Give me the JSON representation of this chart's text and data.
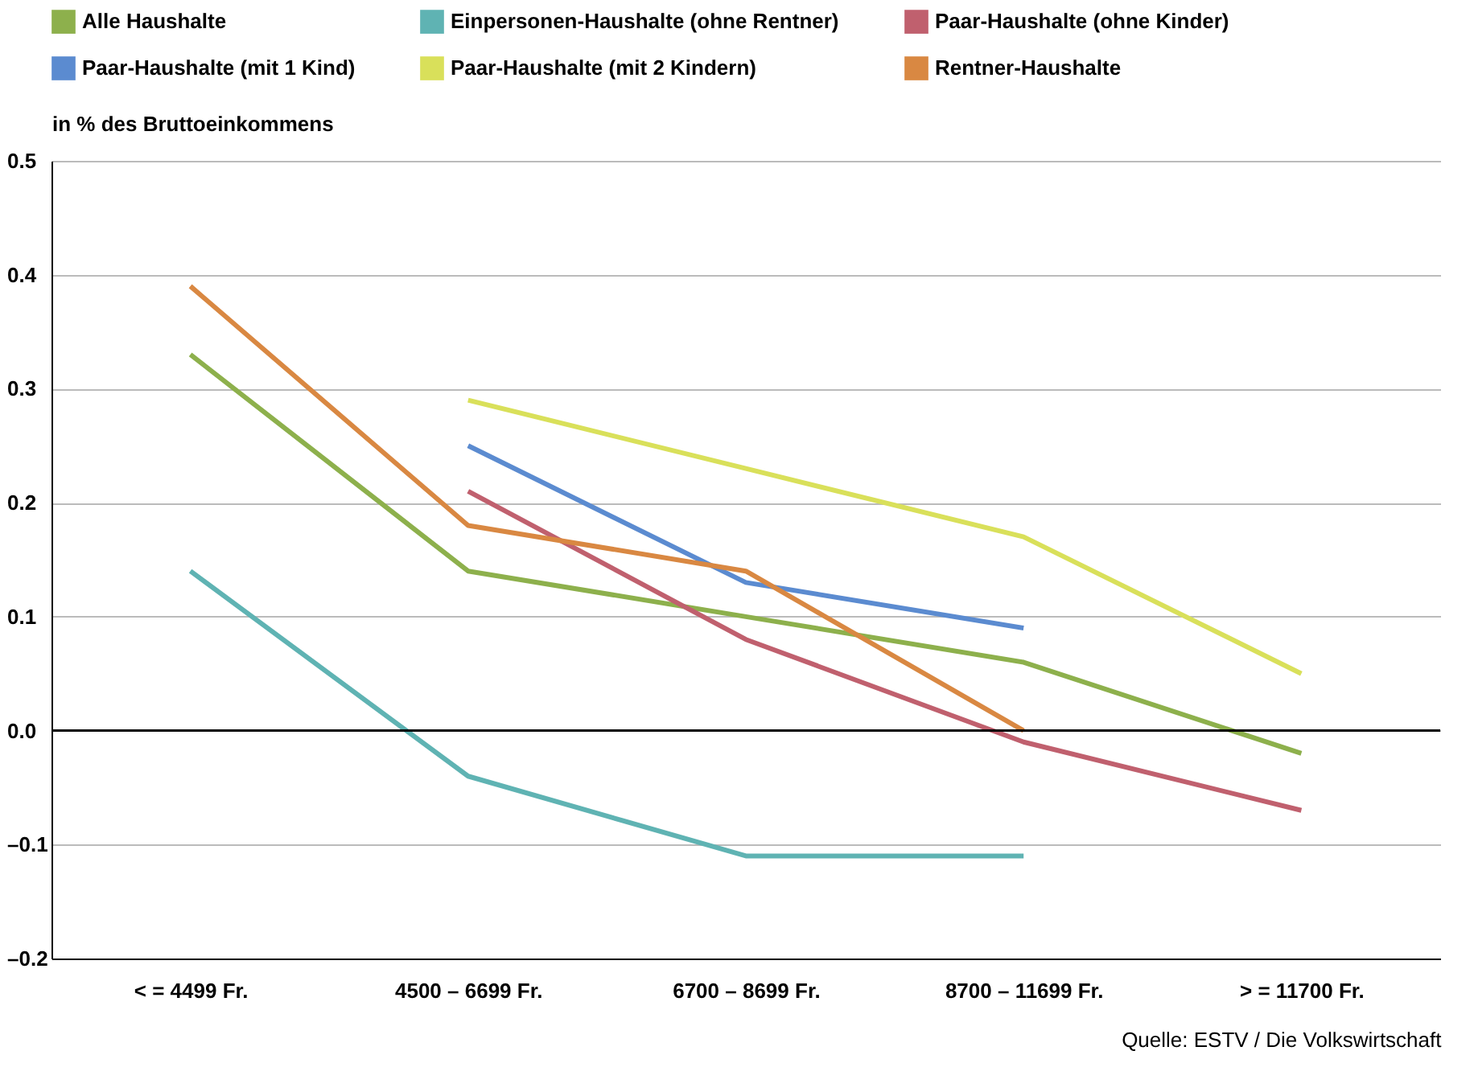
{
  "chart_data": {
    "type": "line",
    "ylabel": "in % des Bruttoeinkommens",
    "categories": [
      "< = 4499 Fr.",
      "4500 – 6699 Fr.",
      "6700 – 8699 Fr.",
      "8700 – 11699 Fr.",
      "> = 11700 Fr."
    ],
    "series": [
      {
        "name": "Alle Haushalte",
        "color": "#8db04c",
        "values": [
          0.33,
          0.14,
          0.1,
          0.06,
          -0.02
        ]
      },
      {
        "name": "Einpersonen-Haushalte (ohne Rentner)",
        "color": "#5fb3b3",
        "values": [
          0.14,
          -0.04,
          -0.11,
          -0.11,
          null
        ]
      },
      {
        "name": "Paar-Haushalte (ohne Kinder)",
        "color": "#c0606e",
        "values": [
          null,
          0.21,
          0.08,
          -0.01,
          -0.07
        ]
      },
      {
        "name": "Paar-Haushalte (mit 1 Kind)",
        "color": "#5b8bd0",
        "values": [
          null,
          0.25,
          0.13,
          0.09,
          null
        ]
      },
      {
        "name": "Paar-Haushalte (mit 2 Kindern)",
        "color": "#d9e05a",
        "values": [
          null,
          0.29,
          0.23,
          0.17,
          0.05
        ]
      },
      {
        "name": "Rentner-Haushalte",
        "color": "#d98842",
        "values": [
          0.39,
          0.18,
          0.14,
          0.0,
          null
        ]
      }
    ],
    "ylim": [
      -0.2,
      0.5
    ],
    "yticks": [
      {
        "value": -0.2,
        "label": "–0.2"
      },
      {
        "value": -0.1,
        "label": "–0.1"
      },
      {
        "value": 0,
        "label": "0.0"
      },
      {
        "value": 0.1,
        "label": "0.1"
      },
      {
        "value": 0.2,
        "label": "0.2"
      },
      {
        "value": 0.3,
        "label": "0.3"
      },
      {
        "value": 0.4,
        "label": "0.4"
      },
      {
        "value": 0.5,
        "label": "0.5"
      }
    ],
    "grid": "y",
    "legend": "top",
    "ref_lines": [
      {
        "axis": "y",
        "value": 0
      }
    ],
    "annotations": [
      "Quelle: ESTV / Die Volkswirtschaft"
    ]
  }
}
